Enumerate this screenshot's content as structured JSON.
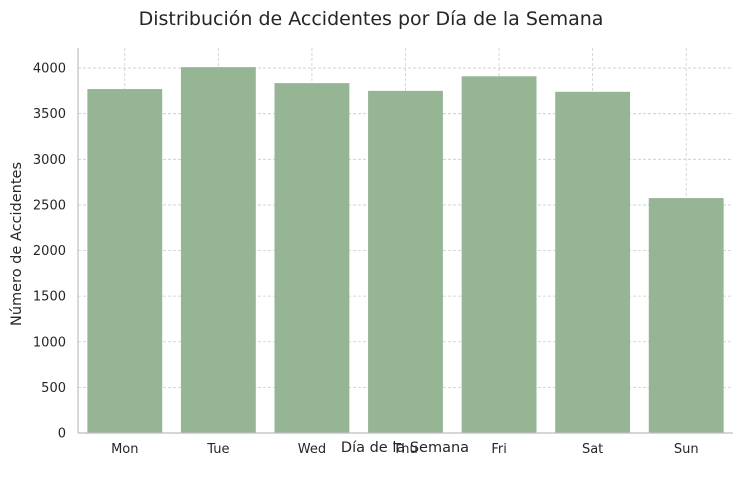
{
  "chart_data": {
    "type": "bar",
    "title": "Distribución de Accidentes por Día de la Semana",
    "xlabel": "Día de la Semana",
    "ylabel": "Número de Accidentes",
    "categories": [
      "Mon",
      "Tue",
      "Wed",
      "Thu",
      "Fri",
      "Sat",
      "Sun"
    ],
    "values": [
      3770,
      4010,
      3835,
      3750,
      3910,
      3740,
      2575
    ],
    "ylim": [
      0,
      4220
    ],
    "yticks": [
      0,
      500,
      1000,
      1500,
      2000,
      2500,
      3000,
      3500,
      4000
    ],
    "grid": true,
    "bar_color": "#96b594",
    "legend": "none"
  }
}
